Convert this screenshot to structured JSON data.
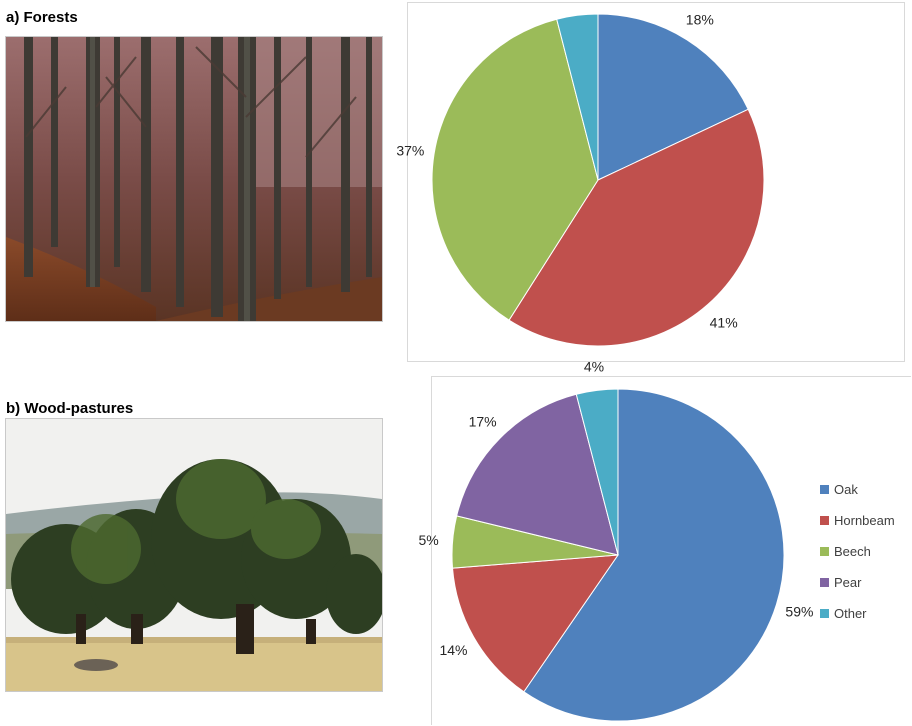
{
  "panels": [
    {
      "label": "a) Forests"
    },
    {
      "label": "b) Wood-pastures"
    }
  ],
  "colors": {
    "Oak": "#4f81bd",
    "Hornbeam": "#c0504d",
    "Beech": "#9bbb59",
    "Pear": "#8064a2",
    "Other": "#4bacc6"
  },
  "chart_data": [
    {
      "type": "pie",
      "title": "",
      "categories": [
        "Oak",
        "Hornbeam",
        "Beech",
        "Other"
      ],
      "values": [
        18,
        41,
        37,
        4
      ],
      "labels": [
        "18%",
        "41%",
        "37%",
        "4%"
      ]
    },
    {
      "type": "pie",
      "title": "",
      "categories": [
        "Oak",
        "Hornbeam",
        "Beech",
        "Pear",
        "Other"
      ],
      "values": [
        59,
        14,
        5,
        17,
        4
      ],
      "labels": [
        "59%",
        "14%",
        "5%",
        "17%",
        "4%"
      ],
      "legend": {
        "position": "right",
        "entries": [
          "Oak",
          "Hornbeam",
          "Beech",
          "Pear",
          "Other"
        ]
      }
    }
  ]
}
